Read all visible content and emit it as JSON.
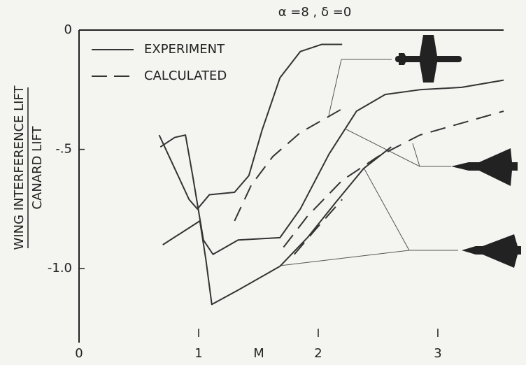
{
  "chart_data": {
    "type": "line",
    "title": "α =8 , δ =0",
    "xlabel": "M",
    "ylabel": {
      "numerator": "WING INTERFERENCE LIFT",
      "denominator": "CANARD LIFT"
    },
    "xlim": [
      0,
      3.55
    ],
    "ylim": [
      -1.31,
      0
    ],
    "xticks": [
      0,
      1,
      2,
      3
    ],
    "yticks": [
      0,
      {
        "value": -0.5,
        "label": "-.5"
      },
      {
        "value": -1.0,
        "label": "-1.0"
      }
    ],
    "grid": false,
    "legend_position": "upper left",
    "legend": [
      {
        "label": "EXPERIMENT",
        "dashed": false
      },
      {
        "label": "CALCULATED",
        "dashed": true
      }
    ],
    "color": "#333333",
    "series": [
      {
        "dashed": false,
        "x": [
          0.67,
          0.8,
          0.92,
          0.99,
          1.09,
          1.3,
          1.42,
          1.53,
          1.68,
          1.85,
          2.03,
          2.2
        ],
        "values": [
          -0.44,
          -0.58,
          -0.71,
          -0.75,
          -0.69,
          -0.68,
          -0.61,
          -0.42,
          -0.2,
          -0.09,
          -0.06,
          -0.06
        ]
      },
      {
        "dashed": false,
        "x": [
          0.68,
          0.8,
          0.89,
          0.95,
          1.04,
          1.12,
          1.33,
          1.68,
          1.85,
          2.09,
          2.32,
          2.56,
          2.85,
          3.2,
          3.55
        ],
        "values": [
          -0.49,
          -0.45,
          -0.44,
          -0.61,
          -0.88,
          -0.94,
          -0.88,
          -0.87,
          -0.75,
          -0.52,
          -0.34,
          -0.27,
          -0.25,
          -0.24,
          -0.21
        ]
      },
      {
        "dashed": false,
        "x": [
          0.7,
          1.01,
          1.06,
          1.11,
          1.33,
          1.68,
          1.91,
          2.15,
          2.38,
          2.61
        ],
        "values": [
          -0.9,
          -0.8,
          -0.96,
          -1.15,
          -1.09,
          -0.99,
          -0.87,
          -0.72,
          -0.58,
          -0.49
        ]
      },
      {
        "dashed": true,
        "x": [
          1.3,
          1.44,
          1.62,
          1.85,
          2.2
        ],
        "values": [
          -0.8,
          -0.65,
          -0.53,
          -0.43,
          -0.33
        ]
      },
      {
        "dashed": true,
        "x": [
          1.71,
          1.91,
          2.2,
          2.5,
          2.85,
          3.2,
          3.55
        ],
        "values": [
          -0.91,
          -0.78,
          -0.63,
          -0.53,
          -0.44,
          -0.39,
          -0.34
        ]
      },
      {
        "dashed": true,
        "x": [
          1.8,
          1.97,
          2.2
        ],
        "values": [
          -0.94,
          -0.84,
          -0.71
        ]
      }
    ]
  }
}
